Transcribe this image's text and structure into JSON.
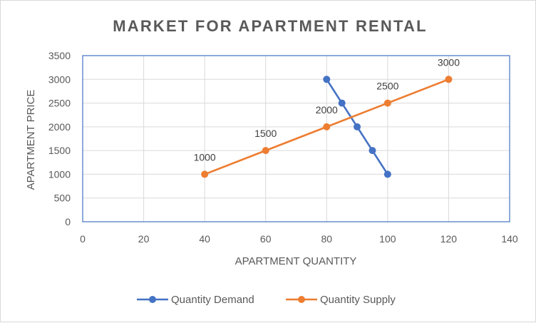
{
  "chart_data": {
    "type": "scatter",
    "title": "MARKET FOR APARTMENT RENTAL",
    "xlabel": "APARTMENT QUANTITY",
    "ylabel": "APARTMENT PRICE",
    "xlim": [
      0,
      140
    ],
    "ylim": [
      0,
      3500
    ],
    "x_ticks": [
      "0",
      "20",
      "40",
      "60",
      "80",
      "100",
      "120",
      "140"
    ],
    "y_ticks": [
      "0",
      "500",
      "1000",
      "1500",
      "2000",
      "2500",
      "3000",
      "3500"
    ],
    "grid": true,
    "legend_position": "bottom",
    "series": [
      {
        "name": "Quantity Demand",
        "color": "#4472c4",
        "x": [
          80,
          85,
          90,
          95,
          100
        ],
        "y": [
          3000,
          2500,
          2000,
          1500,
          1000
        ],
        "data_labels": []
      },
      {
        "name": "Quantity Supply",
        "color": "#ed7d31",
        "x": [
          40,
          60,
          80,
          100,
          120
        ],
        "y": [
          1000,
          1500,
          2000,
          2500,
          3000
        ],
        "data_labels": [
          "1000",
          "1500",
          "2000",
          "2500",
          "3000"
        ]
      }
    ]
  }
}
